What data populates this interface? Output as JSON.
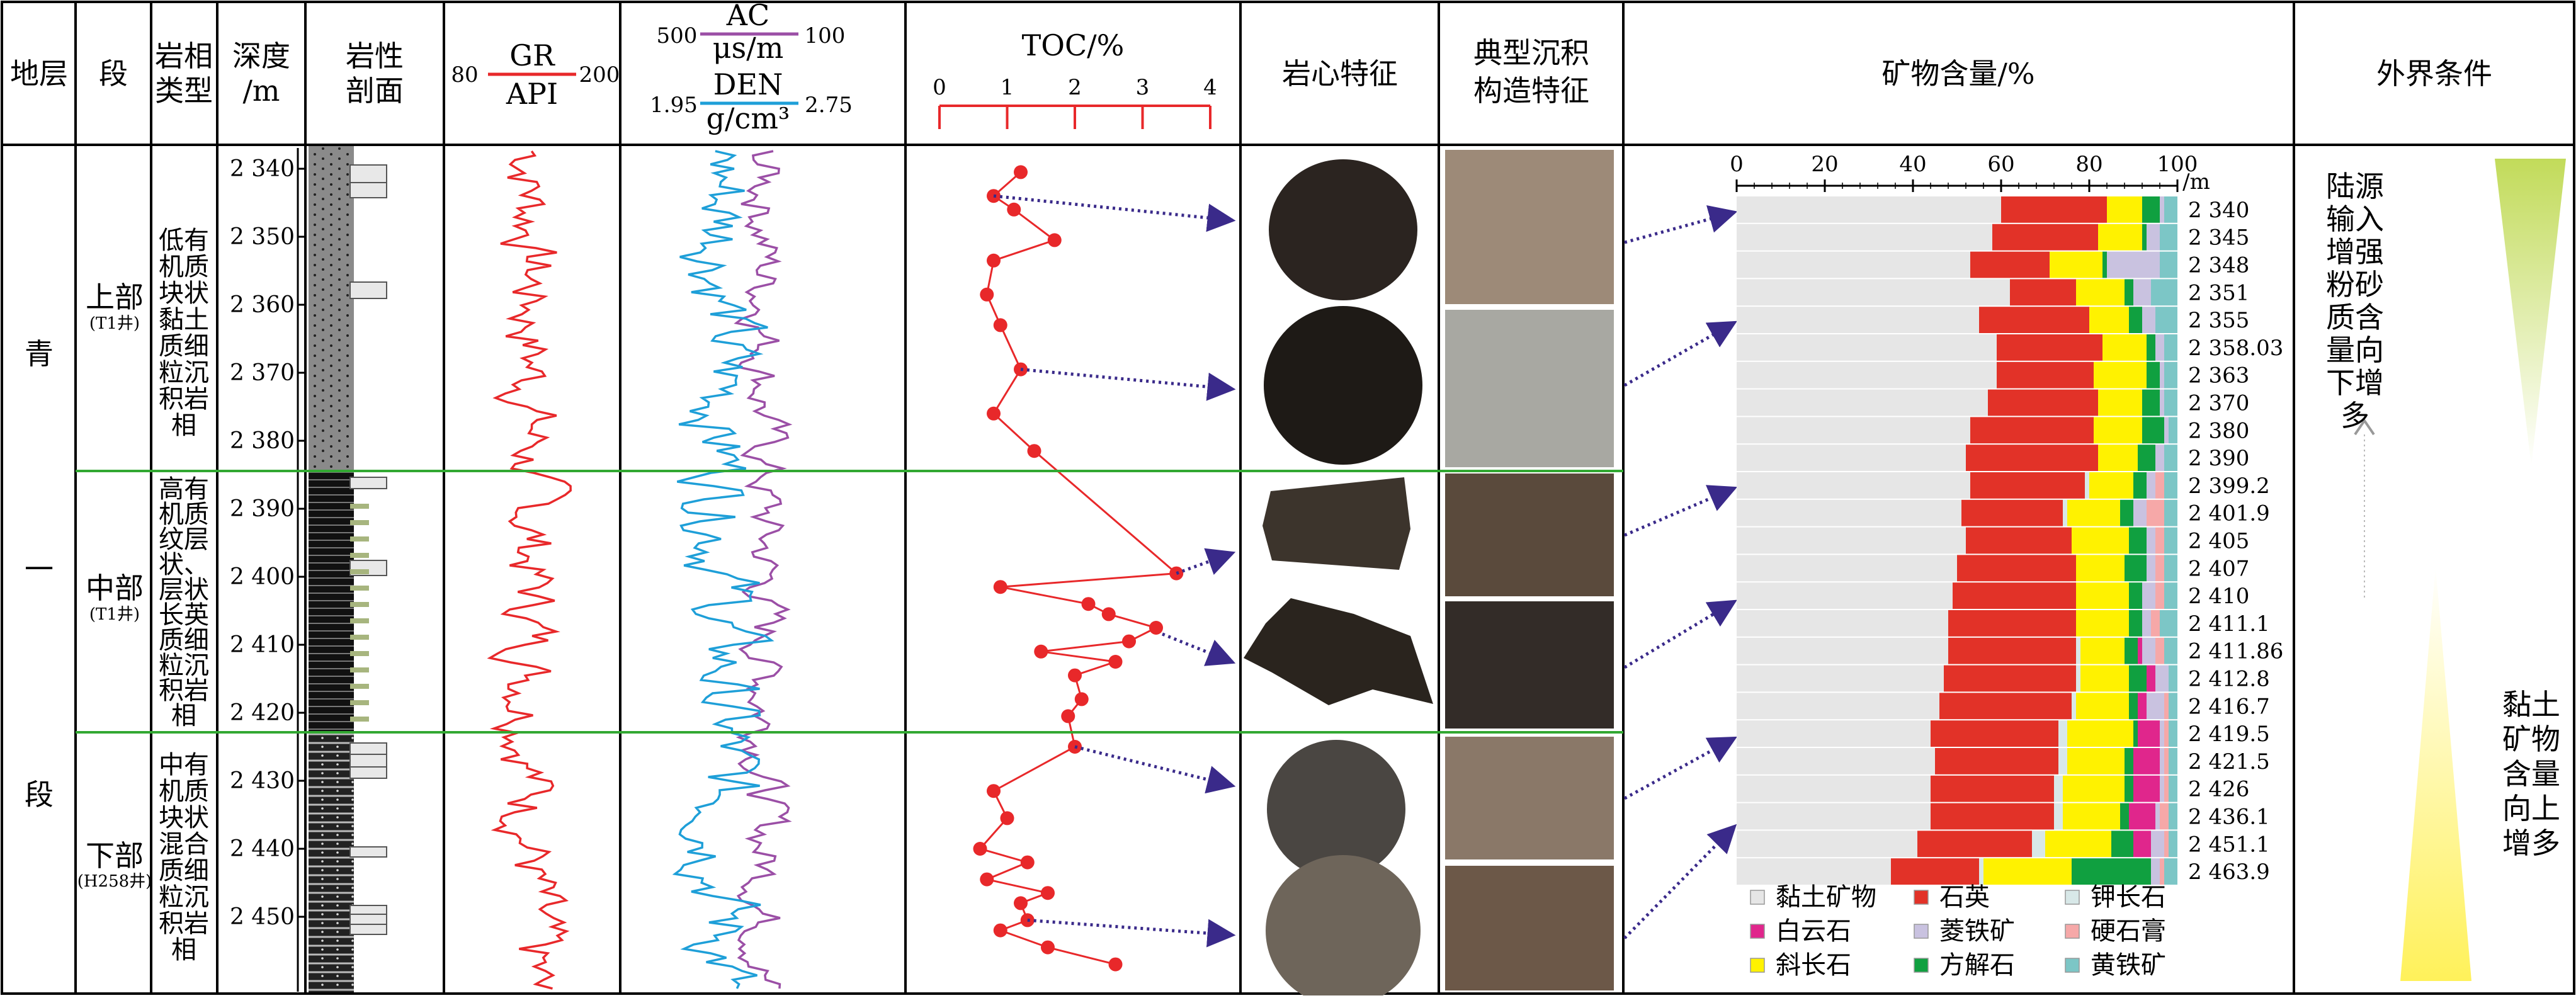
{
  "headers": {
    "stratum": "地层",
    "member": "段",
    "facies_line1": "岩相",
    "facies_line2": "类型",
    "depth_line1": "深度",
    "depth_line2": "/m",
    "lith_line1": "岩性",
    "lith_line2": "剖面",
    "gr_name": "GR",
    "gr_unit": "API",
    "gr_min": "80",
    "gr_max": "200",
    "ac_name": "AC",
    "ac_unit": "μs/m",
    "ac_min": "500",
    "ac_max": "100",
    "den_name": "DEN",
    "den_unit": "g/cm³",
    "den_min": "1.95",
    "den_max": "2.75",
    "toc_title": "TOC/%",
    "toc_ticks": [
      "0",
      "1",
      "2",
      "3",
      "4"
    ],
    "core": "岩心特征",
    "struct_line1": "典型沉积",
    "struct_line2": "构造特征",
    "mineral": "矿物含量/%",
    "external": "外界条件"
  },
  "stratum_chars": [
    "青",
    "一",
    "段"
  ],
  "members": [
    {
      "name": "上部",
      "well": "(T1井)"
    },
    {
      "name": "中部",
      "well": "(T1井)"
    },
    {
      "name": "下部",
      "well": "(H258井)"
    }
  ],
  "facies": [
    {
      "lines": [
        "低有",
        "机质",
        "块状",
        "黏土",
        "质细",
        "粒沉",
        "积岩",
        "相"
      ]
    },
    {
      "lines": [
        "高有",
        "机质",
        "纹层",
        "状、",
        "层状",
        "长英",
        "质细",
        "粒沉",
        "积岩",
        "相"
      ]
    },
    {
      "lines": [
        "中有",
        "机质",
        "块状",
        "混合",
        "质细",
        "粒沉",
        "积岩",
        "相"
      ]
    }
  ],
  "depth_ticks": [
    "2 340",
    "2 350",
    "2 360",
    "2 370",
    "2 380",
    "2 390",
    "2 400",
    "2 410",
    "2 420",
    "2 430",
    "2 440",
    "2 450"
  ],
  "colors": {
    "gr": "#e8282a",
    "ac": "#9b4fa6",
    "den": "#1e9fd8",
    "toc": "#e8282a",
    "boundary": "#32a832",
    "arrow": "#3a2a8a",
    "upper_gradient": "#c2db5a",
    "lower_gradient": "#fff15a"
  },
  "mineral_axis": {
    "ticks": [
      "0",
      "20",
      "40",
      "60",
      "80",
      "100"
    ],
    "unit": "/m"
  },
  "mineral_legend": [
    {
      "name": "黏土矿物",
      "color": "#e6e6e6"
    },
    {
      "name": "石英",
      "color": "#e23228"
    },
    {
      "name": "钾长石",
      "color": "#d8e8e8"
    },
    {
      "name": "白云石",
      "color": "#e0268c"
    },
    {
      "name": "菱铁矿",
      "color": "#c9c2e0"
    },
    {
      "name": "硬石膏",
      "color": "#f6a8a8"
    },
    {
      "name": "斜长石",
      "color": "#fff200"
    },
    {
      "name": "方解石",
      "color": "#10a040"
    },
    {
      "name": "黄铁矿",
      "color": "#7cc6c6"
    }
  ],
  "external_conditions": {
    "upper_text": [
      "陆源",
      "输入",
      "增强",
      "粉砂",
      "质含",
      "量向",
      "下增",
      "多"
    ],
    "lower_text": [
      "黏土",
      "矿物",
      "含量",
      "向上",
      "增多"
    ]
  },
  "chart_data": [
    {
      "type": "line",
      "name": "TOC",
      "title": "TOC/%",
      "xlim": [
        0,
        4
      ],
      "points": [
        {
          "depth": 2340.5,
          "toc": 1.2
        },
        {
          "depth": 2344.0,
          "toc": 0.8
        },
        {
          "depth": 2346.0,
          "toc": 1.1
        },
        {
          "depth": 2350.5,
          "toc": 1.7
        },
        {
          "depth": 2353.5,
          "toc": 0.8
        },
        {
          "depth": 2358.5,
          "toc": 0.7
        },
        {
          "depth": 2363.0,
          "toc": 0.9
        },
        {
          "depth": 2369.5,
          "toc": 1.2
        },
        {
          "depth": 2376.0,
          "toc": 0.8
        },
        {
          "depth": 2381.5,
          "toc": 1.4
        },
        {
          "depth": 2399.5,
          "toc": 3.5
        },
        {
          "depth": 2401.5,
          "toc": 0.9
        },
        {
          "depth": 2404.0,
          "toc": 2.2
        },
        {
          "depth": 2405.5,
          "toc": 2.5
        },
        {
          "depth": 2407.5,
          "toc": 3.2
        },
        {
          "depth": 2409.5,
          "toc": 2.8
        },
        {
          "depth": 2411.0,
          "toc": 1.5
        },
        {
          "depth": 2412.5,
          "toc": 2.6
        },
        {
          "depth": 2414.5,
          "toc": 2.0
        },
        {
          "depth": 2418.0,
          "toc": 2.1
        },
        {
          "depth": 2420.5,
          "toc": 1.9
        },
        {
          "depth": 2425.0,
          "toc": 2.0
        },
        {
          "depth": 2431.5,
          "toc": 0.8
        },
        {
          "depth": 2435.5,
          "toc": 1.0
        },
        {
          "depth": 2440.0,
          "toc": 0.6
        },
        {
          "depth": 2442.0,
          "toc": 1.3
        },
        {
          "depth": 2444.5,
          "toc": 0.7
        },
        {
          "depth": 2446.5,
          "toc": 1.6
        },
        {
          "depth": 2448.0,
          "toc": 1.2
        },
        {
          "depth": 2450.5,
          "toc": 1.3
        },
        {
          "depth": 2452.0,
          "toc": 0.9
        },
        {
          "depth": 2454.5,
          "toc": 1.6
        },
        {
          "depth": 2457.0,
          "toc": 2.6
        }
      ]
    },
    {
      "type": "bar",
      "name": "mineral content",
      "title": "矿物含量/%",
      "xlim": [
        0,
        100
      ],
      "categories": [
        "2 340",
        "2 345",
        "2 348",
        "2 351",
        "2 355",
        "2 358.03",
        "2 363",
        "2 370",
        "2 380",
        "2 390",
        "2 399.2",
        "2 401.9",
        "2 405",
        "2 407",
        "2 410",
        "2 411.1",
        "2 411.86",
        "2 412.8",
        "2 416.7",
        "2 419.5",
        "2 421.5",
        "2 426",
        "2 436.1",
        "2 451.1",
        "2 463.9"
      ],
      "series": [
        {
          "name": "黏土矿物",
          "values": [
            60,
            58,
            53,
            62,
            55,
            59,
            59,
            57,
            53,
            52,
            53,
            51,
            52,
            50,
            49,
            48,
            48,
            47,
            46,
            44,
            45,
            44,
            44,
            41,
            35
          ]
        },
        {
          "name": "石英",
          "values": [
            24,
            24,
            18,
            15,
            25,
            24,
            22,
            25,
            28,
            30,
            26,
            23,
            24,
            27,
            28,
            29,
            29,
            30,
            30,
            29,
            28,
            28,
            28,
            26,
            20
          ]
        },
        {
          "name": "钾长石",
          "values": [
            0,
            0,
            0,
            0,
            0,
            0,
            0,
            0,
            0,
            0,
            1,
            1,
            0,
            0,
            0,
            0,
            1,
            1,
            1,
            2,
            2,
            2,
            2,
            3,
            1
          ]
        },
        {
          "name": "斜长石",
          "values": [
            8,
            10,
            12,
            11,
            9,
            10,
            12,
            10,
            11,
            9,
            10,
            12,
            13,
            11,
            12,
            12,
            10,
            11,
            12,
            15,
            13,
            14,
            13,
            15,
            20
          ]
        },
        {
          "name": "方解石",
          "values": [
            4,
            1,
            1,
            2,
            3,
            2,
            3,
            4,
            5,
            4,
            3,
            3,
            4,
            5,
            3,
            3,
            3,
            4,
            2,
            1,
            2,
            2,
            2,
            5,
            18
          ]
        },
        {
          "name": "白云石",
          "values": [
            0,
            0,
            0,
            0,
            0,
            0,
            0,
            0,
            0,
            0,
            0,
            0,
            0,
            0,
            0,
            0,
            1,
            2,
            2,
            5,
            6,
            6,
            6,
            4,
            0
          ]
        },
        {
          "name": "菱铁矿",
          "values": [
            1,
            3,
            12,
            4,
            3,
            2,
            1,
            1,
            1,
            2,
            2,
            3,
            2,
            2,
            3,
            2,
            3,
            3,
            4,
            1,
            1,
            1,
            1,
            3,
            2
          ]
        },
        {
          "name": "硬石膏",
          "values": [
            0,
            0,
            0,
            0,
            0,
            0,
            0,
            0,
            0,
            0,
            2,
            4,
            2,
            2,
            2,
            2,
            2,
            0,
            1,
            1,
            1,
            1,
            2,
            1,
            1
          ]
        },
        {
          "name": "黄铁矿",
          "values": [
            3,
            4,
            4,
            6,
            5,
            3,
            3,
            3,
            2,
            3,
            3,
            3,
            3,
            3,
            3,
            4,
            3,
            2,
            2,
            2,
            2,
            2,
            2,
            2,
            3
          ]
        }
      ]
    }
  ]
}
